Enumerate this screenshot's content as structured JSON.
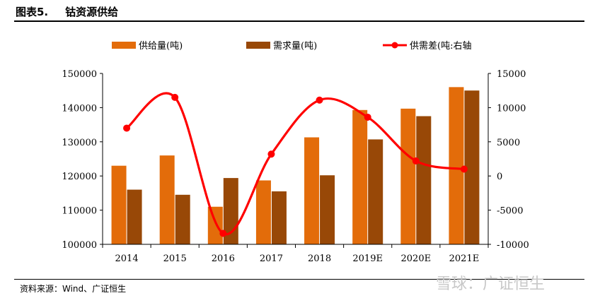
{
  "header": {
    "figure_label": "图表5.",
    "title": "钴资源供给"
  },
  "source": "资料来源：Wind、广证恒生",
  "watermark": "雪球：广证恒生",
  "colors": {
    "supply": "#E36C0A",
    "demand": "#984807",
    "balance": "#FF0000"
  },
  "chart_data": {
    "type": "bar",
    "categories": [
      "2014",
      "2015",
      "2016",
      "2017",
      "2018",
      "2019E",
      "2020E",
      "2021E"
    ],
    "series": [
      {
        "name": "供给量(吨)",
        "type": "bar",
        "axis": "left",
        "values": [
          123000,
          126000,
          111000,
          118700,
          131300,
          139300,
          139700,
          146000
        ]
      },
      {
        "name": "需求量(吨)",
        "type": "bar",
        "axis": "left",
        "values": [
          116000,
          114500,
          119400,
          115500,
          120200,
          130700,
          137500,
          145000
        ]
      },
      {
        "name": "供需差(吨:右轴",
        "type": "line",
        "axis": "right",
        "values": [
          7000,
          11500,
          -8400,
          3200,
          11100,
          8600,
          2200,
          1000
        ]
      }
    ],
    "y_left": {
      "min": 100000,
      "max": 150000,
      "ticks": [
        "100000",
        "110000",
        "120000",
        "130000",
        "140000",
        "150000"
      ]
    },
    "y_right": {
      "min": -10000,
      "max": 15000,
      "ticks": [
        "-10000",
        "-5000",
        "0",
        "5000",
        "10000",
        "15000"
      ]
    },
    "legend_position": "top",
    "grid": false
  }
}
